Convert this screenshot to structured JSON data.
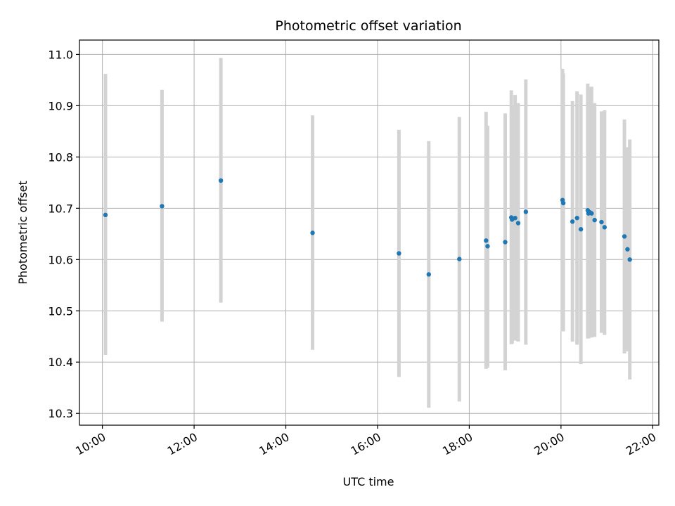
{
  "chart_data": {
    "type": "scatter",
    "title": "Photometric offset variation",
    "xlabel": "UTC time",
    "ylabel": "Photometric offset",
    "x_tick_labels": [
      "10:00",
      "12:00",
      "14:00",
      "16:00",
      "18:00",
      "20:00",
      "22:00"
    ],
    "y_tick_labels": [
      "10.3",
      "10.4",
      "10.5",
      "10.6",
      "10.7",
      "10.8",
      "10.9",
      "11.0"
    ],
    "xlim": [
      "09:30",
      "22:08"
    ],
    "ylim": [
      10.277,
      11.028
    ],
    "grid": true,
    "colors": {
      "point": "#1f77b4",
      "errorbar": "#d3d3d3",
      "grid": "#b0b0b0"
    },
    "series": [
      {
        "points": [
          {
            "x": "10:04",
            "y": 10.687,
            "lower": 10.414,
            "upper": 10.962
          },
          {
            "x": "11:18",
            "y": 10.704,
            "lower": 10.479,
            "upper": 10.931
          },
          {
            "x": "12:35",
            "y": 10.754,
            "lower": 10.516,
            "upper": 10.993
          },
          {
            "x": "14:35",
            "y": 10.652,
            "lower": 10.424,
            "upper": 10.881
          },
          {
            "x": "16:28",
            "y": 10.612,
            "lower": 10.371,
            "upper": 10.853
          },
          {
            "x": "17:07",
            "y": 10.571,
            "lower": 10.311,
            "upper": 10.831
          },
          {
            "x": "17:47",
            "y": 10.601,
            "lower": 10.323,
            "upper": 10.878
          },
          {
            "x": "18:22",
            "y": 10.637,
            "lower": 10.387,
            "upper": 10.888
          },
          {
            "x": "18:24",
            "y": 10.626,
            "lower": 10.389,
            "upper": 10.861
          },
          {
            "x": "18:47",
            "y": 10.634,
            "lower": 10.384,
            "upper": 10.885
          },
          {
            "x": "18:55",
            "y": 10.682,
            "lower": 10.435,
            "upper": 10.93
          },
          {
            "x": "18:56",
            "y": 10.678,
            "lower": 10.436,
            "upper": 10.899
          },
          {
            "x": "19:00",
            "y": 10.681,
            "lower": 10.442,
            "upper": 10.921
          },
          {
            "x": "19:04",
            "y": 10.671,
            "lower": 10.44,
            "upper": 10.905
          },
          {
            "x": "19:14",
            "y": 10.693,
            "lower": 10.434,
            "upper": 10.951
          },
          {
            "x": "20:02",
            "y": 10.716,
            "lower": 10.46,
            "upper": 10.972
          },
          {
            "x": "20:03",
            "y": 10.71,
            "lower": 10.46,
            "upper": 10.963
          },
          {
            "x": "20:15",
            "y": 10.674,
            "lower": 10.44,
            "upper": 10.909
          },
          {
            "x": "20:21",
            "y": 10.681,
            "lower": 10.434,
            "upper": 10.928
          },
          {
            "x": "20:26",
            "y": 10.659,
            "lower": 10.396,
            "upper": 10.922
          },
          {
            "x": "20:35",
            "y": 10.696,
            "lower": 10.446,
            "upper": 10.943
          },
          {
            "x": "20:36",
            "y": 10.69,
            "lower": 10.446,
            "upper": 10.936
          },
          {
            "x": "20:38",
            "y": 10.692,
            "lower": 10.448,
            "upper": 10.935
          },
          {
            "x": "20:40",
            "y": 10.69,
            "lower": 10.448,
            "upper": 10.937
          },
          {
            "x": "20:44",
            "y": 10.677,
            "lower": 10.449,
            "upper": 10.905
          },
          {
            "x": "20:53",
            "y": 10.673,
            "lower": 10.457,
            "upper": 10.889
          },
          {
            "x": "20:57",
            "y": 10.663,
            "lower": 10.453,
            "upper": 10.891
          },
          {
            "x": "21:23",
            "y": 10.645,
            "lower": 10.417,
            "upper": 10.873
          },
          {
            "x": "21:27",
            "y": 10.62,
            "lower": 10.421,
            "upper": 10.819
          },
          {
            "x": "21:30",
            "y": 10.6,
            "lower": 10.366,
            "upper": 10.834
          }
        ]
      }
    ]
  }
}
